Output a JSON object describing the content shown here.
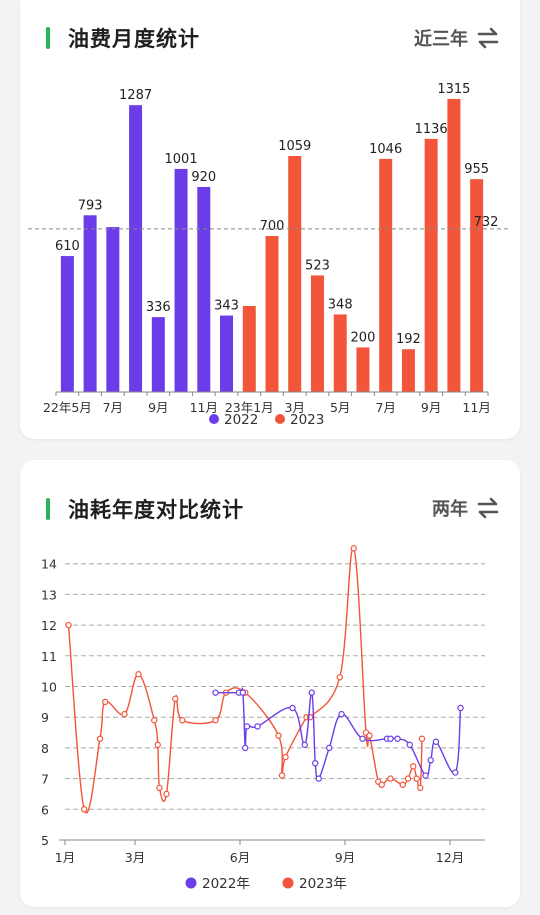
{
  "card1": {
    "title": "油费月度统计",
    "range_label": "近三年",
    "toggle_icon": "swap-arrows-icon"
  },
  "card2": {
    "title": "油耗年度对比统计",
    "range_label": "两年",
    "toggle_icon": "swap-arrows-icon"
  },
  "colors": {
    "accent": "#27b35a",
    "series_2022": "#6a3de8",
    "series_2023": "#f2553a"
  },
  "chart_data": [
    {
      "type": "bar",
      "categories": [
        "22年5月",
        "22年6月",
        "22年7月",
        "22年8月",
        "22年9月",
        "22年10月",
        "22年11月",
        "22年12月",
        "23年1月",
        "23年2月",
        "23年3月",
        "23年4月",
        "23年5月",
        "23年6月",
        "23年7月",
        "23年8月",
        "23年9月",
        "23年10月",
        "23年11月"
      ],
      "x_tick_labels": [
        {
          "index": 0,
          "label": "22年5月"
        },
        {
          "index": 2,
          "label": "7月"
        },
        {
          "index": 4,
          "label": "9月"
        },
        {
          "index": 6,
          "label": "11月"
        },
        {
          "index": 8,
          "label": "23年1月"
        },
        {
          "index": 10,
          "label": "3月"
        },
        {
          "index": 12,
          "label": "5月"
        },
        {
          "index": 14,
          "label": "7月"
        },
        {
          "index": 16,
          "label": "9月"
        },
        {
          "index": 18,
          "label": "11月"
        }
      ],
      "values": [
        610,
        793,
        740,
        1287,
        336,
        1001,
        920,
        343,
        386,
        700,
        1059,
        523,
        348,
        200,
        1046,
        192,
        1136,
        1315,
        955
      ],
      "data_labels": [
        "610",
        "793",
        "",
        "1287",
        "336",
        "1001",
        "920",
        "343",
        "",
        "700",
        "1059",
        "523",
        "348",
        "200",
        "1046",
        "192",
        "1136",
        "1315",
        "955"
      ],
      "series_year": [
        "2022",
        "2022",
        "2022",
        "2022",
        "2022",
        "2022",
        "2022",
        "2022",
        "2023",
        "2023",
        "2023",
        "2023",
        "2023",
        "2023",
        "2023",
        "2023",
        "2023",
        "2023",
        "2023"
      ],
      "legend": [
        "2022",
        "2023"
      ],
      "reference_line": {
        "value": 732,
        "label": "732",
        "style": "dashed"
      },
      "ylim": [
        0,
        1400
      ],
      "legend_position": "bottom-center"
    },
    {
      "type": "line",
      "x_unit": "month",
      "xlim": [
        1,
        13
      ],
      "x_tick_labels": [
        {
          "value": 1,
          "label": "1月"
        },
        {
          "value": 3,
          "label": "3月"
        },
        {
          "value": 6,
          "label": "6月"
        },
        {
          "value": 9,
          "label": "9月"
        },
        {
          "value": 12,
          "label": "12月"
        }
      ],
      "ylim": [
        5,
        15
      ],
      "y_ticks": [
        5,
        6,
        7,
        8,
        9,
        10,
        11,
        12,
        13,
        14
      ],
      "grid": "dashed-horizontal",
      "legend_position": "bottom-center",
      "series": [
        {
          "name": "2022年",
          "points": [
            [
              5.3,
              9.8
            ],
            [
              5.97,
              9.8
            ],
            [
              6.08,
              9.8
            ],
            [
              6.15,
              8.0
            ],
            [
              6.2,
              8.7
            ],
            [
              6.5,
              8.7
            ],
            [
              7.5,
              9.3
            ],
            [
              7.85,
              8.1
            ],
            [
              8.05,
              9.8
            ],
            [
              8.15,
              7.5
            ],
            [
              8.25,
              7.0
            ],
            [
              8.55,
              8.0
            ],
            [
              8.9,
              9.1
            ],
            [
              9.5,
              8.3
            ],
            [
              10.2,
              8.3
            ],
            [
              10.3,
              8.3
            ],
            [
              10.5,
              8.3
            ],
            [
              10.85,
              8.1
            ],
            [
              11.3,
              7.1
            ],
            [
              11.45,
              7.6
            ],
            [
              11.6,
              8.2
            ],
            [
              12.15,
              7.2
            ],
            [
              12.3,
              9.3
            ]
          ]
        },
        {
          "name": "2023年",
          "points": [
            [
              1.1,
              12.0
            ],
            [
              1.55,
              6.0
            ],
            [
              2.0,
              8.3
            ],
            [
              2.15,
              9.5
            ],
            [
              2.7,
              9.1
            ],
            [
              3.1,
              10.4
            ],
            [
              3.55,
              8.9
            ],
            [
              3.65,
              8.1
            ],
            [
              3.7,
              6.7
            ],
            [
              3.9,
              6.5
            ],
            [
              4.15,
              9.6
            ],
            [
              4.35,
              8.9
            ],
            [
              5.3,
              8.9
            ],
            [
              5.6,
              9.8
            ],
            [
              6.15,
              9.8
            ],
            [
              7.1,
              8.4
            ],
            [
              7.2,
              7.1
            ],
            [
              7.3,
              7.7
            ],
            [
              7.9,
              9.0
            ],
            [
              8.0,
              9.0
            ],
            [
              8.85,
              10.3
            ],
            [
              9.25,
              14.5
            ],
            [
              9.6,
              8.5
            ],
            [
              9.7,
              8.4
            ],
            [
              9.95,
              6.9
            ],
            [
              10.05,
              6.8
            ],
            [
              10.3,
              7.0
            ],
            [
              10.65,
              6.8
            ],
            [
              10.8,
              7.0
            ],
            [
              10.95,
              7.4
            ],
            [
              11.05,
              7.0
            ],
            [
              11.15,
              6.7
            ],
            [
              11.2,
              8.3
            ]
          ]
        }
      ]
    }
  ]
}
